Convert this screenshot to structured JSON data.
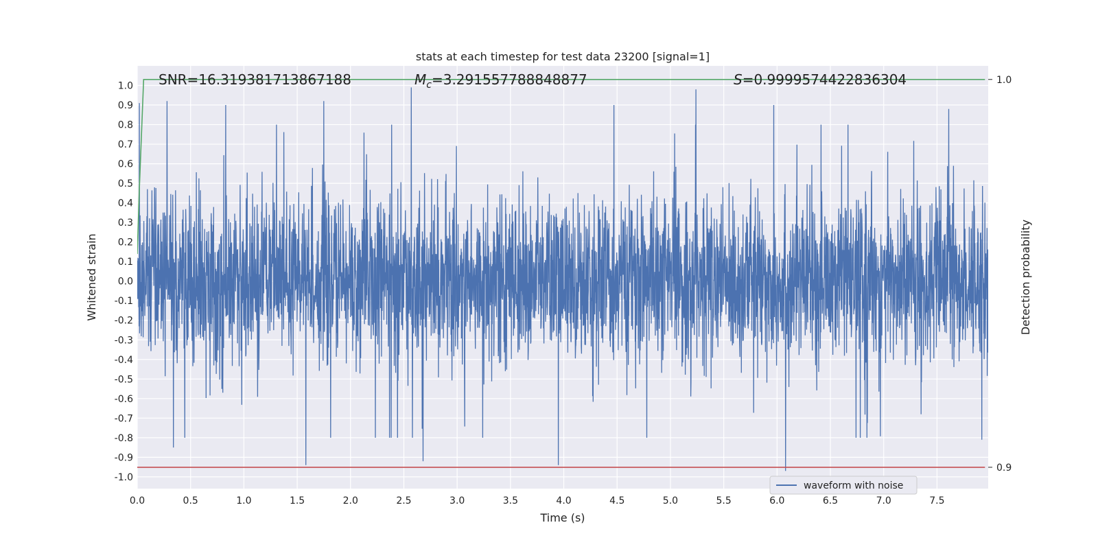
{
  "chart_data": {
    "type": "line",
    "title": "stats at each timestep for test data 23200 [signal=1]",
    "xlabel": "Time (s)",
    "ylabel": "Whitened strain",
    "y2label": "Detection probability",
    "xlim": [
      0.0,
      7.98
    ],
    "ylim": [
      -1.06,
      1.1
    ],
    "y2lim": [
      0.8945,
      1.0035
    ],
    "x_ticks": [
      "0.0",
      "0.5",
      "1.0",
      "1.5",
      "2.0",
      "2.5",
      "3.0",
      "3.5",
      "4.0",
      "4.5",
      "5.0",
      "5.5",
      "6.0",
      "6.5",
      "7.0",
      "7.5"
    ],
    "y_ticks": [
      "1.0",
      "0.9",
      "0.8",
      "0.7",
      "0.6",
      "0.5",
      "0.4",
      "0.3",
      "0.2",
      "0.1",
      "0.0",
      "-0.1",
      "-0.2",
      "-0.3",
      "-0.4",
      "-0.5",
      "-0.6",
      "-0.7",
      "-0.8",
      "-0.9",
      "-1.0"
    ],
    "y2_ticks": [
      "1.0",
      "0.9"
    ],
    "grid": true,
    "legend_position": "bottom-right",
    "annotations": {
      "snr": "SNR=16.319381713867188",
      "mc_symbol": "M",
      "mc_subscript": "c",
      "mc_value": "=3.291557788848877",
      "s_symbol": "S",
      "s_value": "=0.9999574422836304"
    },
    "series": [
      {
        "name": "waveform with noise",
        "color": "#4c72b0",
        "axis": "left",
        "envelope_note": "dense noise",
        "peaks": [
          {
            "x": 0.02,
            "y": 0.91
          },
          {
            "x": 0.28,
            "y": 0.92
          },
          {
            "x": 0.83,
            "y": 0.9
          },
          {
            "x": 1.75,
            "y": 0.92
          },
          {
            "x": 2.57,
            "y": 0.99
          },
          {
            "x": 4.47,
            "y": 0.9
          },
          {
            "x": 5.24,
            "y": 0.98
          },
          {
            "x": 5.97,
            "y": 0.9
          },
          {
            "x": 7.61,
            "y": 0.88
          }
        ],
        "troughs": [
          {
            "x": 0.34,
            "y": -0.85
          },
          {
            "x": 1.58,
            "y": -0.94
          },
          {
            "x": 2.68,
            "y": -0.92
          },
          {
            "x": 3.95,
            "y": -0.94
          },
          {
            "x": 6.08,
            "y": -0.97
          },
          {
            "x": 7.92,
            "y": -0.81
          }
        ]
      },
      {
        "name": "",
        "color": "#55a868",
        "axis": "right",
        "x": [
          0.0,
          0.02,
          0.06,
          7.95
        ],
        "y": [
          0.955,
          0.972,
          1.0,
          1.0
        ]
      },
      {
        "name": "",
        "color": "#c44e52",
        "axis": "right",
        "x": [
          0.0,
          7.95
        ],
        "y": [
          0.9,
          0.9
        ]
      }
    ]
  }
}
